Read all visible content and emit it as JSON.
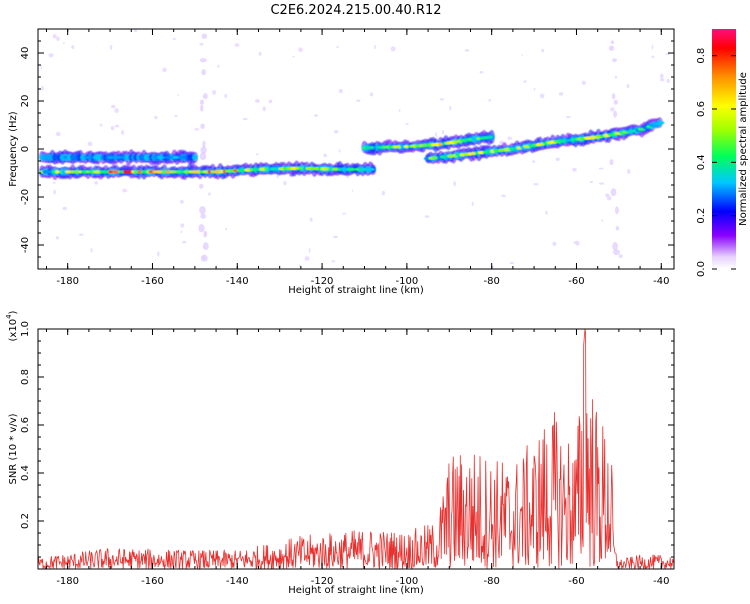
{
  "title": "C2E6.2024.215.00.40.R12",
  "chart_data": [
    {
      "type": "heatmap",
      "xlabel": "Height of straight line (km)",
      "ylabel": "Frequency (Hz)",
      "xlim": [
        -187,
        -37
      ],
      "ylim": [
        -50,
        50
      ],
      "x_ticks": [
        -180,
        -160,
        -140,
        -120,
        -100,
        -80,
        -60,
        -40
      ],
      "y_ticks": [
        -40,
        -20,
        0,
        20,
        40
      ],
      "colorbar": {
        "label": "Normalized spectral amplitude",
        "range": [
          0.0,
          0.9
        ],
        "ticks": [
          "0.0",
          "0.2",
          "0.4",
          "0.6",
          "0.8"
        ]
      },
      "bands": [
        {
          "x": [
            -186,
            -175,
            -165,
            -155,
            -145,
            -135,
            -125,
            -115,
            -108
          ],
          "y": [
            -9.5,
            -9.5,
            -9.5,
            -9.5,
            -9.5,
            -8.5,
            -8,
            -8.5,
            -8.5
          ],
          "amplitude": [
            0.5,
            0.65,
            0.75,
            0.6,
            0.8,
            0.6,
            0.55,
            0.5,
            0.45
          ]
        },
        {
          "x": [
            -186,
            -175,
            -165,
            -155,
            -150
          ],
          "y": [
            -3.5,
            -3.5,
            -3.5,
            -3.5,
            -3.5
          ],
          "amplitude": [
            0.25,
            0.3,
            0.25,
            0.3,
            0.2
          ]
        },
        {
          "x": [
            -110,
            -100,
            -92,
            -85,
            -80
          ],
          "y": [
            0.5,
            1,
            2,
            4,
            5
          ],
          "amplitude": [
            0.4,
            0.55,
            0.6,
            0.5,
            0.4
          ]
        },
        {
          "x": [
            -95,
            -85,
            -75,
            -65,
            -55,
            -45,
            -40
          ],
          "y": [
            -4,
            -2,
            0,
            3,
            5,
            8,
            11
          ],
          "amplitude": [
            0.45,
            0.55,
            0.5,
            0.55,
            0.6,
            0.45,
            0.5
          ]
        }
      ],
      "artifacts_x": [
        -148,
        -51
      ]
    },
    {
      "type": "line",
      "xlabel": "Height of straight line (km)",
      "ylabel": "SNR (10 * v/v)",
      "y_scale_label": "(x10",
      "y_scale_exponent": "4",
      "y_scale_suffix": ")",
      "xlim": [
        -187,
        -37
      ],
      "ylim": [
        0,
        1.0
      ],
      "x_ticks": [
        -180,
        -160,
        -140,
        -120,
        -100,
        -80,
        -60,
        -40
      ],
      "y_ticks": [
        0.2,
        0.4,
        0.6,
        0.8,
        1.0
      ],
      "color": "#e8302e",
      "envelope": {
        "x": [
          -187,
          -170,
          -150,
          -140,
          -125,
          -110,
          -100,
          -93,
          -90,
          -85,
          -80,
          -75,
          -70,
          -66,
          -63,
          -60,
          -58,
          -55,
          -52,
          -51,
          -50,
          -45,
          -37
        ],
        "y": [
          0.05,
          0.09,
          0.08,
          0.08,
          0.14,
          0.17,
          0.16,
          0.2,
          0.48,
          0.52,
          0.48,
          0.45,
          0.55,
          0.68,
          0.6,
          0.55,
          1.0,
          0.65,
          0.6,
          0.1,
          0.04,
          0.06,
          0.06
        ]
      }
    }
  ]
}
